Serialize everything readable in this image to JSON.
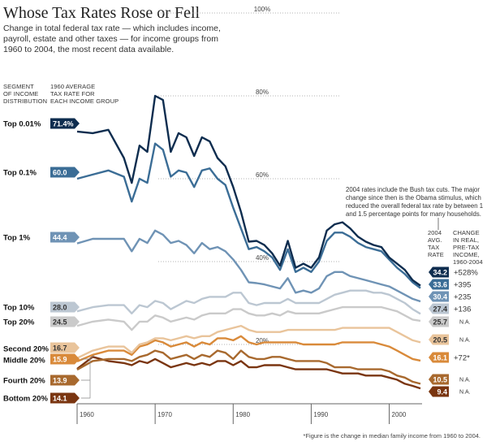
{
  "title": "Whose Tax Rates Rose or Fell",
  "subtitle": [
    "Change in total federal tax rate — which includes income,",
    "payroll, estate and other taxes — for income groups from",
    "1960 to 2004, the most recent data available."
  ],
  "headers": {
    "segment": [
      "SEGMENT",
      "OF INCOME",
      "DISTRIBUTION"
    ],
    "avg1960": [
      "1960 AVERAGE",
      "TAX RATE FOR",
      "EACH INCOME GROUP"
    ],
    "avg2004": [
      "2004",
      "AVG.",
      "TAX",
      "RATE"
    ],
    "change": [
      "CHANGE",
      "IN REAL,",
      "PRE-TAX",
      "INCOME,",
      "1960-2004"
    ]
  },
  "annotation": [
    "2004 rates include the Bush tax cuts. The major",
    "change since then is the Obama stimulus, which",
    "reduced the overall federal tax rate by between 1",
    "and 1.5 percentage points for many households."
  ],
  "footnote": "*Figure is the change in median family income from 1960 to 2004.",
  "chart_data": {
    "type": "line",
    "title": "Whose Tax Rates Rose or Fell",
    "xlim": [
      1960,
      2004
    ],
    "ylim": [
      0,
      100
    ],
    "x_ticks": [
      "1960",
      "1970",
      "1980",
      "1990",
      "2000"
    ],
    "gridlines": [
      {
        "value": 100,
        "label": "100%"
      },
      {
        "value": 80,
        "label": "80%"
      },
      {
        "value": 60,
        "label": "60%"
      },
      {
        "value": 40,
        "label": "40%"
      },
      {
        "value": 20,
        "label": "20%"
      }
    ],
    "x": [
      1960,
      1962,
      1964,
      1966,
      1967,
      1968,
      1969,
      1970,
      1971,
      1972,
      1973,
      1974,
      1975,
      1976,
      1977,
      1978,
      1979,
      1980,
      1981,
      1982,
      1983,
      1984,
      1985,
      1986,
      1987,
      1988,
      1989,
      1990,
      1991,
      1992,
      1993,
      1994,
      1995,
      1996,
      1997,
      1998,
      1999,
      2000,
      2001,
      2002,
      2003,
      2004
    ],
    "series": [
      {
        "name": "Top 0.01%",
        "start_label": "71.4%",
        "end_label": "34.2",
        "change": "+528%",
        "color": "#0e2d4f",
        "text_color": "#ffffff",
        "values": [
          71.4,
          71.0,
          71.8,
          65.0,
          59.0,
          68.0,
          66.5,
          80.0,
          79.0,
          66.5,
          71.0,
          70.0,
          65.5,
          70.0,
          69.0,
          65.0,
          63.0,
          58.0,
          52.0,
          44.8,
          45.0,
          44.0,
          42.0,
          39.0,
          45.0,
          38.5,
          39.5,
          38.5,
          41.0,
          47.5,
          49.0,
          49.5,
          48.0,
          46.0,
          44.8,
          44.0,
          43.5,
          41.0,
          39.5,
          38.0,
          35.5,
          34.2
        ]
      },
      {
        "name": "Top 0.1%",
        "start_label": "60.0",
        "end_label": "33.6",
        "change": "+395",
        "color": "#3b6d96",
        "text_color": "#ffffff",
        "values": [
          60.0,
          61.0,
          62.0,
          60.5,
          54.5,
          60.0,
          59.0,
          68.5,
          67.0,
          60.5,
          62.0,
          61.5,
          58.0,
          62.0,
          62.5,
          60.0,
          58.5,
          53.0,
          48.0,
          43.0,
          43.5,
          42.5,
          41.0,
          38.0,
          43.0,
          37.5,
          38.5,
          37.5,
          40.0,
          45.0,
          47.0,
          47.0,
          46.0,
          44.5,
          43.5,
          43.0,
          42.5,
          40.5,
          38.5,
          37.0,
          35.0,
          33.6
        ]
      },
      {
        "name": "Top 1%",
        "start_label": "44.4",
        "end_label": "30.4",
        "change": "+235",
        "color": "#6f93b5",
        "text_color": "#ffffff",
        "values": [
          44.4,
          45.5,
          45.5,
          45.5,
          42.5,
          45.5,
          44.5,
          47.5,
          46.5,
          44.5,
          45.0,
          44.0,
          42.0,
          44.5,
          43.0,
          43.5,
          42.5,
          40.5,
          38.0,
          35.0,
          34.8,
          34.5,
          34.0,
          33.5,
          36.0,
          32.5,
          33.0,
          32.5,
          33.5,
          36.5,
          37.5,
          37.5,
          36.5,
          36.0,
          35.5,
          35.0,
          34.5,
          34.0,
          33.0,
          32.0,
          31.0,
          30.4
        ]
      },
      {
        "name": "Top 10%",
        "start_label": "28.0",
        "end_label": "27.4",
        "change": "+136",
        "color": "#bcc7d2",
        "text_color": "#333333",
        "values": [
          28.0,
          29.0,
          29.5,
          29.5,
          27.5,
          29.5,
          29.0,
          30.5,
          30.0,
          28.5,
          29.5,
          30.5,
          30.0,
          31.0,
          31.5,
          31.5,
          31.5,
          32.5,
          32.5,
          30.0,
          29.5,
          30.0,
          30.0,
          30.0,
          31.0,
          30.0,
          30.0,
          30.0,
          30.0,
          31.0,
          32.0,
          32.5,
          33.0,
          33.0,
          33.0,
          32.5,
          32.5,
          32.0,
          31.0,
          30.0,
          28.5,
          27.4
        ]
      },
      {
        "name": "Top 20%",
        "start_label": "24.5",
        "end_label": "25.7",
        "change": "N.A.",
        "color": "#cacaca",
        "text_color": "#333333",
        "values": [
          24.5,
          25.5,
          26.0,
          25.5,
          23.5,
          25.5,
          25.5,
          27.0,
          26.5,
          25.5,
          26.0,
          26.5,
          26.0,
          27.0,
          27.5,
          27.5,
          27.5,
          28.5,
          28.5,
          27.5,
          27.0,
          27.0,
          27.5,
          27.0,
          28.0,
          27.5,
          27.5,
          27.5,
          27.5,
          28.0,
          28.5,
          29.0,
          29.0,
          29.0,
          29.0,
          29.0,
          29.0,
          28.5,
          28.0,
          27.0,
          26.0,
          25.7
        ]
      },
      {
        "name": "Second 20%",
        "start_label": "16.7",
        "end_label": "20.5",
        "change": "N.A.",
        "color": "#e9c49b",
        "text_color": "#333333",
        "values": [
          16.7,
          18.5,
          19.5,
          19.5,
          18.0,
          20.0,
          20.5,
          21.5,
          21.5,
          21.0,
          21.5,
          22.0,
          21.5,
          22.0,
          22.0,
          23.0,
          23.5,
          24.0,
          24.5,
          23.5,
          23.0,
          23.0,
          23.0,
          23.0,
          23.5,
          23.5,
          23.5,
          23.5,
          23.5,
          23.5,
          23.5,
          24.0,
          24.0,
          24.0,
          24.0,
          24.0,
          24.0,
          24.0,
          23.0,
          22.0,
          21.0,
          20.5
        ]
      },
      {
        "name": "Middle 20%",
        "start_label": "15.9",
        "end_label": "16.1",
        "change": "+72*",
        "color": "#d98a3a",
        "text_color": "#ffffff",
        "values": [
          15.9,
          17.5,
          18.5,
          18.5,
          17.5,
          19.5,
          20.0,
          21.0,
          20.5,
          19.5,
          20.0,
          20.5,
          19.5,
          20.5,
          20.0,
          21.5,
          21.5,
          21.0,
          22.0,
          20.5,
          20.0,
          20.5,
          20.5,
          20.5,
          20.5,
          20.5,
          20.0,
          20.0,
          20.0,
          20.0,
          20.0,
          20.5,
          20.5,
          20.5,
          20.5,
          20.5,
          20.0,
          19.5,
          18.5,
          17.5,
          16.5,
          16.1
        ]
      },
      {
        "name": "Fourth 20%",
        "start_label": "13.9",
        "end_label": "10.5",
        "change": "N.A.",
        "color": "#a8692e",
        "text_color": "#ffffff",
        "values": [
          13.9,
          16.0,
          16.5,
          16.5,
          16.0,
          17.0,
          17.5,
          18.5,
          18.0,
          16.5,
          17.0,
          17.5,
          16.5,
          17.5,
          17.0,
          18.5,
          18.0,
          16.5,
          18.5,
          17.0,
          16.5,
          16.5,
          17.0,
          17.0,
          16.5,
          16.0,
          16.0,
          16.0,
          16.0,
          15.5,
          14.5,
          14.5,
          14.5,
          14.0,
          14.0,
          14.0,
          14.0,
          13.5,
          12.5,
          12.0,
          11.0,
          10.5
        ]
      },
      {
        "name": "Bottom 20%",
        "start_label": "14.1",
        "end_label": "9.4",
        "change": "N.A.",
        "color": "#7a3510",
        "text_color": "#ffffff",
        "values": [
          14.1,
          17.0,
          16.0,
          15.5,
          15.0,
          16.0,
          15.5,
          16.5,
          15.5,
          14.5,
          15.0,
          15.5,
          15.0,
          15.5,
          15.0,
          16.0,
          16.0,
          15.0,
          16.0,
          14.5,
          14.5,
          15.0,
          15.0,
          15.0,
          14.5,
          14.0,
          14.0,
          14.0,
          14.0,
          14.0,
          13.5,
          13.0,
          13.0,
          13.0,
          12.5,
          12.5,
          12.5,
          12.0,
          11.5,
          10.5,
          10.0,
          9.4
        ]
      }
    ]
  }
}
